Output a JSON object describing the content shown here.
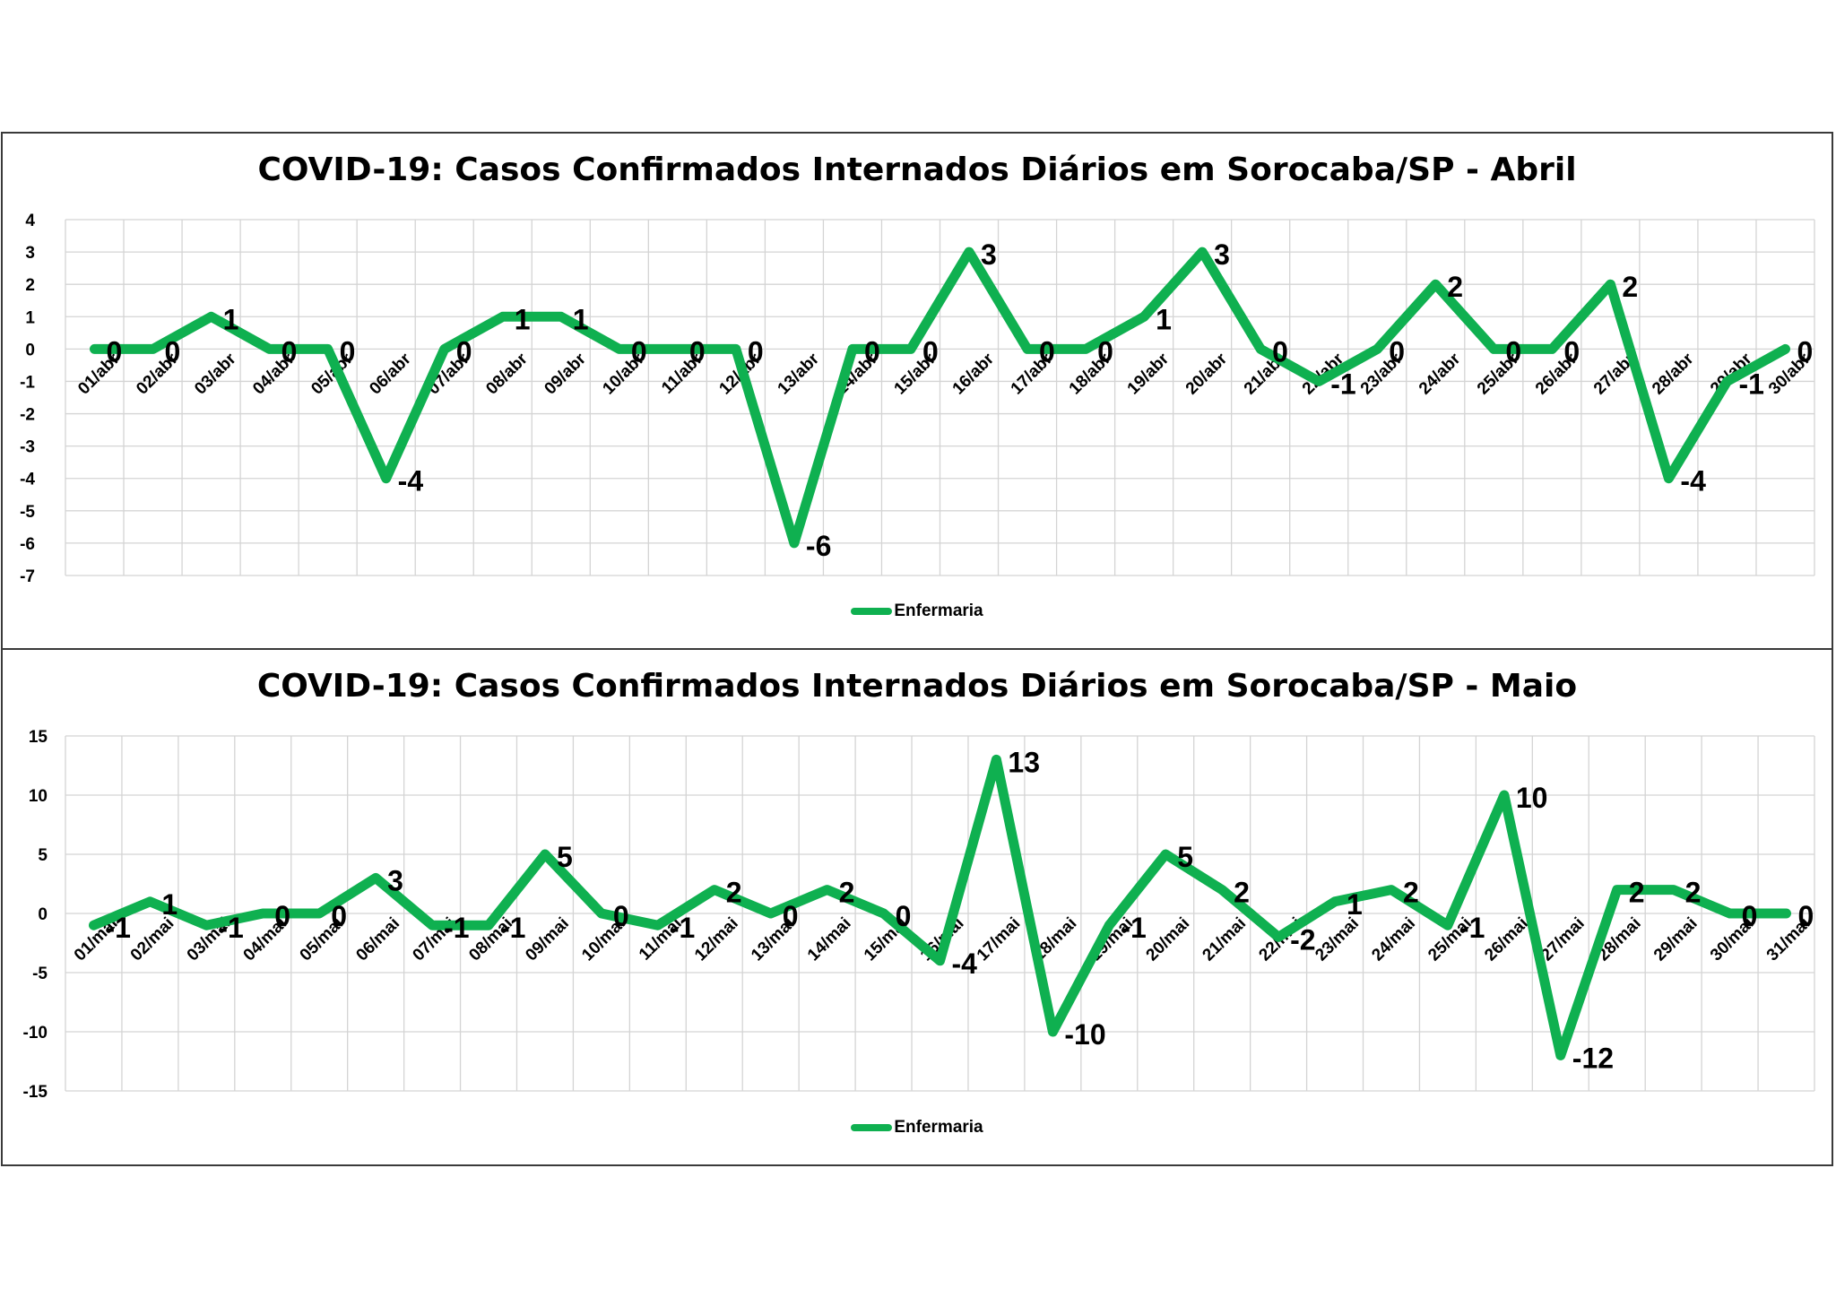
{
  "chart_data": [
    {
      "type": "line",
      "title": "COVID-19: Casos Confirmados Internados Diários em Sorocaba/SP - Abril",
      "categories": [
        "01/abr",
        "02/abr",
        "03/abr",
        "04/abr",
        "05/abr",
        "06/abr",
        "07/abr",
        "08/abr",
        "09/abr",
        "10/abr",
        "11/abr",
        "12/abr",
        "13/abr",
        "14/abr",
        "15/abr",
        "16/abr",
        "17/abr",
        "18/abr",
        "19/abr",
        "20/abr",
        "21/abr",
        "22/abr",
        "23/abr",
        "24/abr",
        "25/abr",
        "26/abr",
        "27/abr",
        "28/abr",
        "29/abr",
        "30/abr"
      ],
      "series": [
        {
          "name": "Enfermaria",
          "values": [
            0,
            0,
            1,
            0,
            0,
            -4,
            0,
            1,
            1,
            0,
            0,
            0,
            -6,
            0,
            0,
            3,
            0,
            0,
            1,
            3,
            0,
            -1,
            0,
            2,
            0,
            0,
            2,
            -4,
            -1,
            0
          ]
        }
      ],
      "yticks": [
        "4",
        "3",
        "2",
        "1",
        "0",
        "-1",
        "-2",
        "-3",
        "-4",
        "-5",
        "-6",
        "-7"
      ],
      "ylim": [
        -7,
        4
      ],
      "grid": true,
      "legend_position": "bottom",
      "color": "#0fb050"
    },
    {
      "type": "line",
      "title": "COVID-19: Casos Confirmados Internados Diários em Sorocaba/SP - Maio",
      "categories": [
        "01/mai",
        "02/mai",
        "03/mai",
        "04/mai",
        "05/mai",
        "06/mai",
        "07/mai",
        "08/mai",
        "09/mai",
        "10/mai",
        "11/mai",
        "12/mai",
        "13/mai",
        "14/mai",
        "15/mai",
        "16/mai",
        "17/mai",
        "18/mai",
        "19/mai",
        "20/mai",
        "21/mai",
        "22/mai",
        "23/mai",
        "24/mai",
        "25/mai",
        "26/mai",
        "27/mai",
        "28/mai",
        "29/mai",
        "30/mai",
        "31/mai"
      ],
      "series": [
        {
          "name": "Enfermaria",
          "values": [
            -1,
            1,
            -1,
            0,
            0,
            3,
            -1,
            -1,
            5,
            0,
            -1,
            2,
            0,
            2,
            0,
            -4,
            13,
            -10,
            -1,
            5,
            2,
            -2,
            1,
            2,
            -1,
            10,
            -12,
            2,
            2,
            0,
            0
          ]
        }
      ],
      "yticks": [
        "15",
        "10",
        "5",
        "0",
        "-5",
        "-10",
        "-15"
      ],
      "ylim": [
        -15,
        15
      ],
      "grid": true,
      "legend_position": "bottom",
      "color": "#0fb050"
    }
  ]
}
